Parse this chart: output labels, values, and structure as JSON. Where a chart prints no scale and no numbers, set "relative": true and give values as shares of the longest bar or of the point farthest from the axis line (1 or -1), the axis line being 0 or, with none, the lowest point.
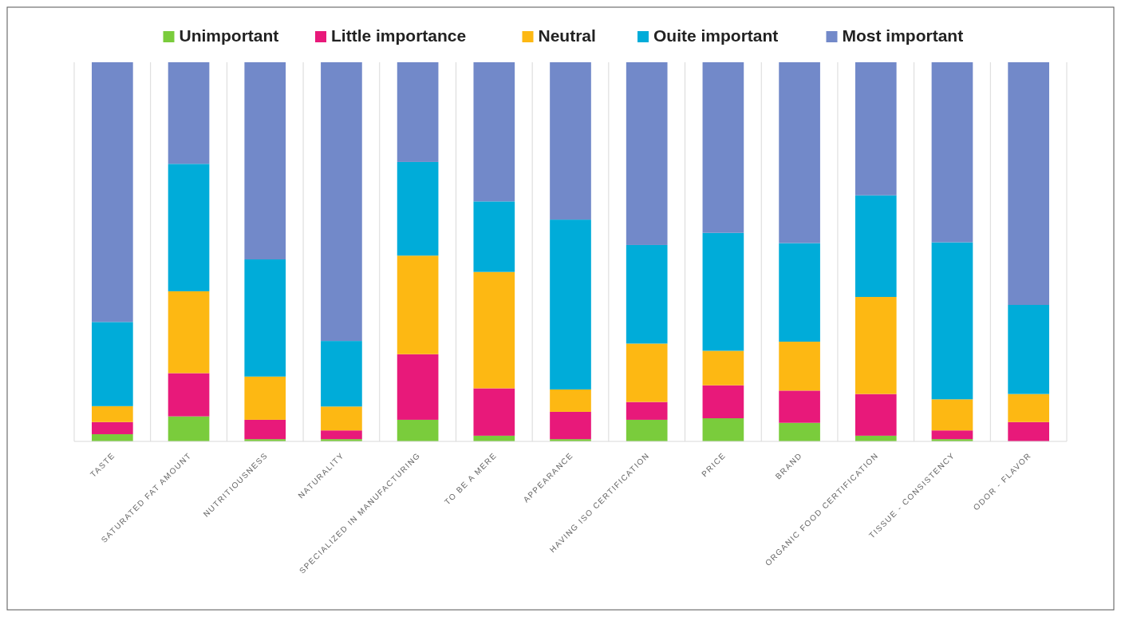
{
  "chart_data": {
    "type": "bar",
    "stacked": true,
    "relative": true,
    "legend": "top",
    "grid": "x",
    "categories": [
      "TASTE",
      "SATURATED FAT AMOUNT",
      "NUTRITIOUSNESS",
      "NATURALITY",
      "SPECIALIZED IN MANUFACTURING",
      "TO BE A MERE",
      "APPEARANCE",
      "HAVING ISO CERTIFICATION",
      "PRICE",
      "BRAND",
      "ORGANIC FOOD CERTIFICATION",
      "TISSUE - CONSISTENCY",
      "ODOR - FLAVOR"
    ],
    "series": [
      {
        "name": "Unimportant",
        "color": "#7acc3c",
        "values": [
          0.019,
          0.066,
          0.006,
          0.006,
          0.057,
          0.015,
          0.006,
          0.057,
          0.061,
          0.049,
          0.015,
          0.006,
          0
        ]
      },
      {
        "name": "Little importance",
        "color": "#e8197a",
        "values": [
          0.032,
          0.114,
          0.051,
          0.023,
          0.173,
          0.125,
          0.072,
          0.047,
          0.087,
          0.085,
          0.11,
          0.023,
          0.051
        ]
      },
      {
        "name": "Neutral",
        "color": "#fdb813",
        "values": [
          0.042,
          0.216,
          0.114,
          0.063,
          0.26,
          0.307,
          0.059,
          0.154,
          0.091,
          0.129,
          0.256,
          0.082,
          0.074
        ]
      },
      {
        "name": "Ouite important",
        "color": "#00acd9",
        "values": [
          0.222,
          0.336,
          0.309,
          0.173,
          0.247,
          0.186,
          0.448,
          0.26,
          0.311,
          0.26,
          0.268,
          0.414,
          0.235
        ]
      },
      {
        "name": "Most important",
        "color": "#7289c9",
        "values": [
          0.685,
          0.268,
          0.52,
          0.735,
          0.263,
          0.367,
          0.415,
          0.482,
          0.45,
          0.477,
          0.351,
          0.475,
          0.64
        ]
      }
    ]
  }
}
